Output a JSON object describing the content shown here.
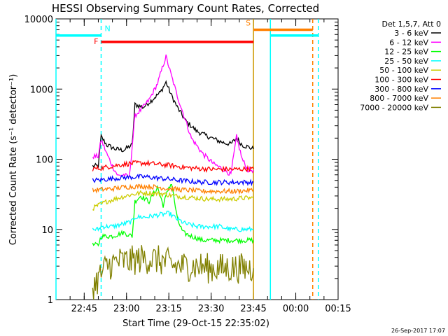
{
  "chart_data": {
    "type": "line",
    "title": "HESSI Observing Summary Count Rates, Corrected",
    "xlabel": "Start Time (29-Oct-15 22:35:02)",
    "ylabel": "Corrected Count Rate (s⁻¹ detector⁻¹)",
    "y_scale": "log",
    "ylim": [
      1,
      10000
    ],
    "xlim_minutes": [
      0,
      100
    ],
    "x_ticks": [
      {
        "label": "22:45",
        "t": 10
      },
      {
        "label": "23:00",
        "t": 25
      },
      {
        "label": "23:15",
        "t": 40
      },
      {
        "label": "23:30",
        "t": 55
      },
      {
        "label": "23:45",
        "t": 70
      },
      {
        "label": "00:00",
        "t": 85
      },
      {
        "label": "00:15",
        "t": 100
      }
    ],
    "y_ticks": [
      {
        "label": "1",
        "v": 1
      },
      {
        "label": "10",
        "v": 10
      },
      {
        "label": "100",
        "v": 100
      },
      {
        "label": "1000",
        "v": 1000
      },
      {
        "label": "10000",
        "v": 10000
      }
    ],
    "legend_header": "Det 1,5,7, Att 0",
    "legend_position": "right",
    "series": [
      {
        "name": "3 - 6 keV",
        "color": "#000000",
        "points": [
          [
            13,
            80
          ],
          [
            15,
            80
          ],
          [
            16,
            210
          ],
          [
            18,
            160
          ],
          [
            21,
            140
          ],
          [
            24,
            135
          ],
          [
            27,
            160
          ],
          [
            28,
            600
          ],
          [
            31,
            550
          ],
          [
            34,
            700
          ],
          [
            37,
            900
          ],
          [
            39,
            1250
          ],
          [
            41,
            800
          ],
          [
            43,
            550
          ],
          [
            46,
            350
          ],
          [
            50,
            250
          ],
          [
            54,
            210
          ],
          [
            58,
            180
          ],
          [
            60,
            170
          ],
          [
            62,
            165
          ],
          [
            64,
            200
          ],
          [
            66,
            160
          ],
          [
            68,
            150
          ],
          [
            70,
            140
          ]
        ]
      },
      {
        "name": "6 - 12 keV",
        "color": "#ff00ff",
        "points": [
          [
            13,
            110
          ],
          [
            15,
            110
          ],
          [
            16,
            190
          ],
          [
            18,
            120
          ],
          [
            20,
            80
          ],
          [
            22,
            58
          ],
          [
            24,
            60
          ],
          [
            26,
            55
          ],
          [
            28,
            420
          ],
          [
            30,
            500
          ],
          [
            33,
            700
          ],
          [
            36,
            1200
          ],
          [
            38,
            2200
          ],
          [
            39,
            2900
          ],
          [
            41,
            1500
          ],
          [
            43,
            800
          ],
          [
            46,
            350
          ],
          [
            48,
            200
          ],
          [
            52,
            120
          ],
          [
            56,
            85
          ],
          [
            60,
            70
          ],
          [
            62,
            60
          ],
          [
            64,
            210
          ],
          [
            66,
            100
          ],
          [
            68,
            70
          ],
          [
            70,
            70
          ]
        ]
      },
      {
        "name": "12 - 25 keV",
        "color": "#00ff00",
        "points": [
          [
            13,
            6
          ],
          [
            15,
            6
          ],
          [
            16,
            8
          ],
          [
            20,
            8
          ],
          [
            24,
            9
          ],
          [
            27,
            8
          ],
          [
            28,
            25
          ],
          [
            30,
            30
          ],
          [
            33,
            25
          ],
          [
            36,
            40
          ],
          [
            38,
            22
          ],
          [
            40,
            40
          ],
          [
            41,
            45
          ],
          [
            43,
            14
          ],
          [
            45,
            9
          ],
          [
            48,
            8
          ],
          [
            52,
            7
          ],
          [
            56,
            7
          ],
          [
            60,
            7
          ],
          [
            64,
            7
          ],
          [
            68,
            7
          ],
          [
            70,
            7
          ]
        ]
      },
      {
        "name": "25 - 50 keV",
        "color": "#00ffff",
        "points": [
          [
            13,
            10
          ],
          [
            15,
            10
          ],
          [
            16,
            11
          ],
          [
            20,
            11
          ],
          [
            24,
            12
          ],
          [
            27,
            13
          ],
          [
            28,
            15
          ],
          [
            32,
            15
          ],
          [
            36,
            16
          ],
          [
            40,
            17
          ],
          [
            43,
            14
          ],
          [
            46,
            12
          ],
          [
            50,
            11
          ],
          [
            54,
            11
          ],
          [
            58,
            11
          ],
          [
            62,
            10
          ],
          [
            66,
            10
          ],
          [
            70,
            10
          ]
        ]
      },
      {
        "name": "50 - 100 keV",
        "color": "#cccc00",
        "points": [
          [
            13,
            20
          ],
          [
            15,
            22
          ],
          [
            18,
            25
          ],
          [
            22,
            28
          ],
          [
            26,
            31
          ],
          [
            30,
            33
          ],
          [
            34,
            33
          ],
          [
            38,
            32
          ],
          [
            42,
            30
          ],
          [
            46,
            29
          ],
          [
            50,
            28
          ],
          [
            54,
            27
          ],
          [
            58,
            27
          ],
          [
            62,
            27
          ],
          [
            66,
            28
          ],
          [
            70,
            28
          ]
        ]
      },
      {
        "name": "100 - 300 keV",
        "color": "#ff0000",
        "points": [
          [
            13,
            73
          ],
          [
            16,
            75
          ],
          [
            20,
            80
          ],
          [
            24,
            85
          ],
          [
            28,
            88
          ],
          [
            32,
            88
          ],
          [
            36,
            85
          ],
          [
            40,
            82
          ],
          [
            44,
            78
          ],
          [
            48,
            75
          ],
          [
            52,
            73
          ],
          [
            56,
            72
          ],
          [
            60,
            72
          ],
          [
            64,
            72
          ],
          [
            68,
            73
          ],
          [
            70,
            73
          ]
        ]
      },
      {
        "name": "300 - 800 keV",
        "color": "#0000ff",
        "points": [
          [
            13,
            50
          ],
          [
            16,
            51
          ],
          [
            20,
            53
          ],
          [
            24,
            55
          ],
          [
            28,
            56
          ],
          [
            32,
            56
          ],
          [
            36,
            54
          ],
          [
            40,
            52
          ],
          [
            44,
            50
          ],
          [
            48,
            48
          ],
          [
            52,
            47
          ],
          [
            56,
            47
          ],
          [
            60,
            47
          ],
          [
            64,
            47
          ],
          [
            68,
            47
          ],
          [
            70,
            47
          ]
        ]
      },
      {
        "name": "800 - 7000 keV",
        "color": "#ff8000",
        "points": [
          [
            13,
            36
          ],
          [
            16,
            37
          ],
          [
            20,
            38
          ],
          [
            24,
            40
          ],
          [
            28,
            41
          ],
          [
            32,
            41
          ],
          [
            36,
            40
          ],
          [
            40,
            38
          ],
          [
            44,
            37
          ],
          [
            48,
            36
          ],
          [
            52,
            35
          ],
          [
            56,
            35
          ],
          [
            60,
            35
          ],
          [
            64,
            35
          ],
          [
            68,
            36
          ],
          [
            70,
            36
          ]
        ]
      },
      {
        "name": "7000 - 20000 keV",
        "color": "#808000",
        "points": [
          [
            13,
            1.5
          ],
          [
            15,
            2
          ],
          [
            18,
            3
          ],
          [
            22,
            3.5
          ],
          [
            26,
            3.5
          ],
          [
            30,
            3.8
          ],
          [
            34,
            3.8
          ],
          [
            38,
            3.5
          ],
          [
            42,
            3
          ],
          [
            46,
            3
          ],
          [
            50,
            3
          ],
          [
            54,
            2.8
          ],
          [
            58,
            2.8
          ],
          [
            62,
            2.8
          ],
          [
            66,
            2.8
          ],
          [
            70,
            2.8
          ]
        ]
      }
    ],
    "flag_bars": [
      {
        "label": "F",
        "color": "#ff0000",
        "t0": 16,
        "t1": 70,
        "level": 4700
      },
      {
        "label": "N",
        "color": "#00ffff",
        "t0": 0,
        "t1": 16,
        "level": 5800
      },
      {
        "label": "",
        "color": "#00ffff",
        "t0": 76,
        "t1": 93,
        "level": 5800
      },
      {
        "label": "S",
        "color": "#ff8000",
        "t0": 70,
        "t1": 91,
        "level": 7000
      }
    ],
    "vlines": [
      {
        "t": 0,
        "color": "#00ffff",
        "style": "solid"
      },
      {
        "t": 16,
        "color": "#00ffff",
        "style": "dashed"
      },
      {
        "t": 70,
        "color": "#cc9900",
        "style": "solid"
      },
      {
        "t": 76,
        "color": "#00ffff",
        "style": "solid"
      },
      {
        "t": 91,
        "color": "#ff8000",
        "style": "dashed"
      },
      {
        "t": 93,
        "color": "#00ffff",
        "style": "dashed"
      }
    ],
    "footer_date": "26-Sep-2017 17:07"
  }
}
